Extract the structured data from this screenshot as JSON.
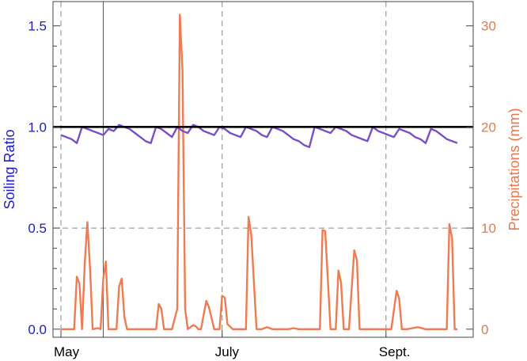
{
  "chart_data": {
    "type": "line",
    "title": "",
    "x_axis": {
      "tick_labels": [
        "May",
        "July",
        "Sept."
      ],
      "tick_days": [
        0,
        61,
        123
      ],
      "range_days": [
        -3,
        156
      ]
    },
    "y_left": {
      "label": "Soiling Ratio",
      "range": [
        -0.04,
        1.62
      ],
      "ticks": [
        0.0,
        0.5,
        1.0,
        1.5
      ],
      "tick_labels": [
        "0.0",
        "0.5",
        "1.0",
        "1.5"
      ],
      "color": "#1a1acc"
    },
    "y_right": {
      "label": "Precipitations  (mm)",
      "range": [
        -0.8,
        32.4
      ],
      "ticks": [
        0,
        10,
        20,
        30
      ],
      "tick_labels": [
        "0",
        "10",
        "20",
        "30"
      ],
      "color": "#e8764a"
    },
    "reference_line": {
      "y": 1.0,
      "axis": "left",
      "color": "#000000"
    },
    "grid": {
      "horizontal_dashed": [
        0.5
      ],
      "vertical_dashed_days": [
        0,
        61,
        123
      ],
      "vertical_solid_days": [
        16
      ]
    },
    "series": [
      {
        "axis": "left",
        "color": "#7b4fc8",
        "x": [
          0,
          2,
          4,
          6,
          8,
          10,
          12,
          14,
          16,
          18,
          20,
          22,
          24,
          26,
          28,
          30,
          32,
          34,
          36,
          38,
          40,
          42,
          44,
          46,
          48,
          50,
          52,
          54,
          56,
          58,
          60,
          62,
          64,
          66,
          68,
          70,
          72,
          74,
          76,
          78,
          80,
          82,
          84,
          86,
          88,
          90,
          92,
          94,
          96,
          98,
          100,
          102,
          104,
          106,
          108,
          110,
          112,
          114,
          116,
          118,
          120,
          122,
          124,
          126,
          128,
          130,
          132,
          134,
          136,
          138,
          140,
          142,
          144,
          146,
          148,
          150
        ],
        "y": [
          0.96,
          0.95,
          0.94,
          0.92,
          1.0,
          0.99,
          0.98,
          0.97,
          0.96,
          0.99,
          0.98,
          1.01,
          1.0,
          0.99,
          0.97,
          0.95,
          0.93,
          0.92,
          1.0,
          0.99,
          0.97,
          0.95,
          1.0,
          0.98,
          0.97,
          1.01,
          1.0,
          0.98,
          0.97,
          0.96,
          1.0,
          0.99,
          0.97,
          0.96,
          0.95,
          1.0,
          0.99,
          0.98,
          0.96,
          0.95,
          1.0,
          0.99,
          0.98,
          0.96,
          0.94,
          0.93,
          0.91,
          0.9,
          1.0,
          0.99,
          0.98,
          0.97,
          1.0,
          0.99,
          0.98,
          0.96,
          0.95,
          0.94,
          0.93,
          1.0,
          0.98,
          0.97,
          0.96,
          0.95,
          0.99,
          0.98,
          0.97,
          0.95,
          0.94,
          0.92,
          0.99,
          0.98,
          0.96,
          0.94,
          0.93,
          0.92
        ]
      },
      {
        "axis": "right",
        "color": "#ee7b52",
        "x": [
          0,
          2,
          4,
          5,
          6,
          7,
          8,
          9,
          10,
          11,
          12,
          14,
          15,
          16,
          17,
          18,
          20,
          21,
          22,
          23,
          24,
          25,
          26,
          28,
          30,
          32,
          34,
          36,
          37,
          38,
          39,
          40,
          42,
          44,
          45,
          46,
          47,
          48,
          50,
          51,
          52,
          53,
          55,
          56,
          58,
          60,
          61,
          62,
          63,
          65,
          67,
          69,
          70,
          71,
          72,
          74,
          76,
          78,
          80,
          82,
          84,
          86,
          88,
          90,
          94,
          96,
          98,
          99,
          100,
          102,
          104,
          105,
          106,
          107,
          109,
          111,
          112,
          113,
          115,
          117,
          119,
          121,
          125,
          127,
          128,
          129,
          130,
          131,
          133,
          135,
          138,
          140,
          142,
          144,
          146,
          147,
          148,
          149,
          150
        ],
        "y": [
          0,
          0,
          0,
          0,
          5.2,
          4.5,
          0,
          6.5,
          10.6,
          6.0,
          0,
          0.1,
          0,
          5.0,
          6.7,
          0,
          0,
          0,
          4.2,
          5.0,
          1.2,
          0,
          0,
          0,
          0,
          0,
          0,
          0,
          2.5,
          2.0,
          0,
          0,
          0,
          2,
          31.1,
          25.6,
          2,
          0,
          0.4,
          0.3,
          0,
          0,
          2.8,
          2.2,
          0,
          0,
          3.3,
          3.1,
          0.5,
          0,
          0,
          0,
          0,
          11.1,
          9.4,
          0,
          0,
          0.2,
          0,
          0,
          0,
          0,
          0.1,
          0,
          0,
          0,
          0,
          9.8,
          9.7,
          0,
          0,
          5.8,
          4.6,
          0,
          0,
          7.8,
          6.8,
          0,
          0,
          0,
          0,
          0,
          0,
          3.8,
          3.0,
          0,
          0,
          0,
          0.1,
          0.2,
          0,
          0,
          0,
          0,
          0,
          10.4,
          9.0,
          0,
          0
        ]
      }
    ]
  }
}
